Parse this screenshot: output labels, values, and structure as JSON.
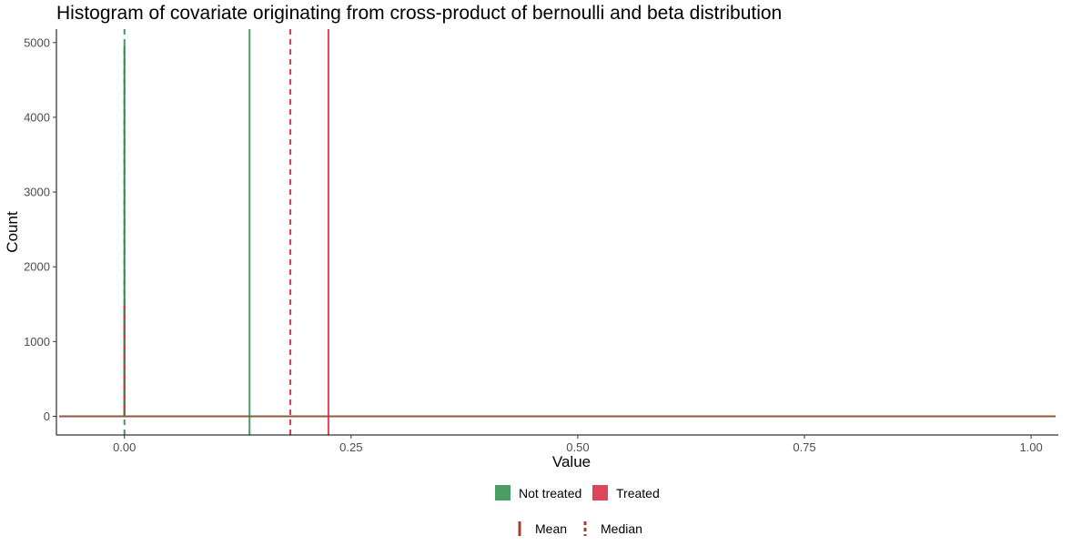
{
  "chart_data": {
    "type": "histogram",
    "title": "Histogram of covariate originating from cross-product of bernoulli and beta distribution",
    "xlabel": "Value",
    "ylabel": "Count",
    "xlim": [
      -0.075,
      1.03
    ],
    "ylim": [
      -250,
      5180
    ],
    "x_ticks": [
      0.0,
      0.25,
      0.5,
      0.75,
      1.0
    ],
    "x_tick_labels": [
      "0.00",
      "0.25",
      "0.50",
      "0.75",
      "1.00"
    ],
    "y_ticks": [
      0,
      1000,
      2000,
      3000,
      4000,
      5000
    ],
    "y_tick_labels": [
      "0",
      "1000",
      "2000",
      "3000",
      "4000",
      "5000"
    ],
    "grid": false,
    "series": [
      {
        "name": "Not treated",
        "color": "#2e8b4a",
        "spikes": [
          {
            "x": 0.0,
            "count": 4970
          }
        ],
        "baseline_range": [
          -0.072,
          1.027
        ],
        "mean": 0.138,
        "median": 0.0
      },
      {
        "name": "Treated",
        "color": "#d7263d",
        "spikes": [
          {
            "x": 0.0,
            "count": 1480
          }
        ],
        "baseline_range": [
          -0.072,
          1.027
        ],
        "mean": 0.225,
        "median": 0.183
      }
    ],
    "legend": {
      "position": "bottom",
      "fill": {
        "items": [
          {
            "label": "Not treated",
            "color": "#2e8b4a"
          },
          {
            "label": "Treated",
            "color": "#d7263d"
          }
        ]
      },
      "linetype": {
        "items": [
          {
            "label": "Mean",
            "dash": "solid"
          },
          {
            "label": "Median",
            "dash": "dashed"
          }
        ],
        "color": "#a0432a"
      }
    }
  }
}
